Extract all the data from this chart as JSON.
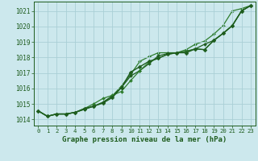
{
  "title": "Graphe pression niveau de la mer (hPa)",
  "background_color": "#cce8ed",
  "grid_color": "#aacfd6",
  "line_color_dark": "#1e5c1e",
  "line_color_med": "#2e7d2e",
  "xlim": [
    -0.5,
    23.5
  ],
  "ylim": [
    1013.6,
    1021.6
  ],
  "yticks": [
    1014,
    1015,
    1016,
    1017,
    1018,
    1019,
    1020,
    1021
  ],
  "xticks": [
    0,
    1,
    2,
    3,
    4,
    5,
    6,
    7,
    8,
    9,
    10,
    11,
    12,
    13,
    14,
    15,
    16,
    17,
    18,
    19,
    20,
    21,
    22,
    23
  ],
  "series": [
    {
      "y": [
        1014.55,
        1014.2,
        1014.35,
        1014.35,
        1014.45,
        1014.7,
        1014.85,
        1015.05,
        1015.4,
        1016.05,
        1017.05,
        1017.4,
        1017.75,
        1017.95,
        1018.2,
        1018.3,
        1018.3,
        1018.55,
        1018.5,
        1019.1,
        1019.55,
        1020.05,
        1021.0,
        1021.35
      ],
      "color": "#1e5c1e",
      "lw": 1.0,
      "ls": "-",
      "marker": "D",
      "ms": 2.5,
      "zorder": 4
    },
    {
      "y": [
        1014.55,
        1014.2,
        1014.35,
        1014.35,
        1014.45,
        1014.7,
        1015.0,
        1015.35,
        1015.55,
        1015.8,
        1016.5,
        1017.15,
        1017.7,
        1017.95,
        1018.2,
        1018.3,
        1018.35,
        1018.55,
        1018.5,
        1019.1,
        1019.55,
        1020.05,
        1021.0,
        1021.35
      ],
      "color": "#2e7d2e",
      "lw": 0.9,
      "ls": "-",
      "marker": "D",
      "ms": 2.0,
      "zorder": 3
    },
    {
      "y": [
        1014.55,
        1014.2,
        1014.35,
        1014.35,
        1014.45,
        1014.65,
        1014.85,
        1015.1,
        1015.5,
        1016.05,
        1016.8,
        1017.15,
        1017.6,
        1018.1,
        1018.25,
        1018.3,
        1018.4,
        1018.55,
        1018.85,
        1019.1,
        1019.55,
        1020.05,
        1021.0,
        1021.35
      ],
      "color": "#1e5c1e",
      "lw": 0.9,
      "ls": "-",
      "marker": "D",
      "ms": 2.0,
      "zorder": 2
    },
    {
      "y": [
        1014.55,
        1014.2,
        1014.35,
        1014.35,
        1014.45,
        1014.65,
        1014.85,
        1015.1,
        1015.5,
        1016.15,
        1016.9,
        1017.75,
        1018.05,
        1018.3,
        1018.3,
        1018.3,
        1018.5,
        1018.85,
        1019.05,
        1019.5,
        1020.05,
        1021.0,
        1021.15,
        1021.35
      ],
      "color": "#2e7d2e",
      "lw": 0.9,
      "ls": "-",
      "marker": "D",
      "ms": 2.0,
      "zorder": 1
    }
  ]
}
